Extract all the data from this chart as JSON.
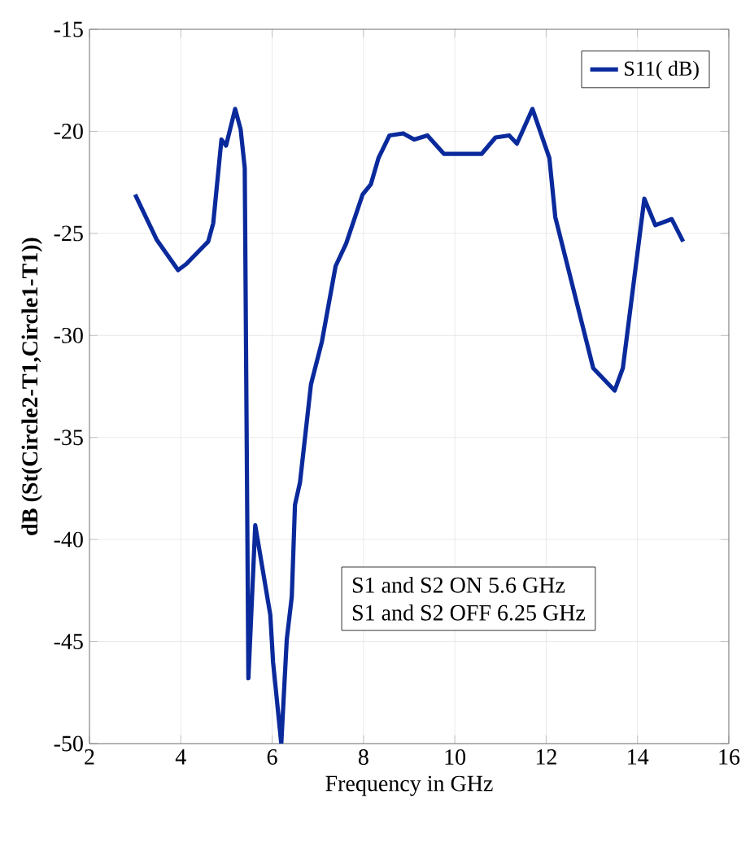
{
  "chart_data": {
    "type": "line",
    "xlabel": "Frequency in GHz",
    "ylabel": "dB (St(Circle2-T1,Circle1-T1))",
    "xlim": [
      2,
      16
    ],
    "ylim": [
      -50,
      -15
    ],
    "xticks": [
      2,
      4,
      6,
      8,
      10,
      12,
      14,
      16
    ],
    "yticks": [
      -50,
      -45,
      -40,
      -35,
      -30,
      -25,
      -20,
      -15
    ],
    "grid": true,
    "legend": "top right",
    "line_style": "solid",
    "annotations": [
      "S1 and S2 ON 5.6 GHz",
      "S1 and S2 OFF 6.25 GHz"
    ],
    "series": [
      {
        "name": "S11( dB)",
        "color": "#0a2a9c",
        "x": [
          3.0,
          3.47,
          3.94,
          4.12,
          4.6,
          4.71,
          4.89,
          4.99,
          5.19,
          5.31,
          5.4,
          5.48,
          5.63,
          5.96,
          6.02,
          6.2,
          6.32,
          6.43,
          6.5,
          6.61,
          6.85,
          7.09,
          7.39,
          7.62,
          7.98,
          8.16,
          8.33,
          8.57,
          8.87,
          9.11,
          9.4,
          9.76,
          10.24,
          10.59,
          10.89,
          11.19,
          11.36,
          11.7,
          12.07,
          12.2,
          13.03,
          13.5,
          13.68,
          14.15,
          14.39,
          14.75,
          15.0
        ],
        "values": [
          -23.1,
          -25.3,
          -26.8,
          -26.5,
          -25.4,
          -24.5,
          -20.4,
          -20.7,
          -18.9,
          -19.9,
          -21.8,
          -46.8,
          -39.3,
          -43.7,
          -46.0,
          -50,
          -44.9,
          -42.8,
          -38.3,
          -37.2,
          -32.4,
          -30.3,
          -26.6,
          -25.5,
          -23.1,
          -22.6,
          -21.3,
          -20.2,
          -20.1,
          -20.4,
          -20.2,
          -21.1,
          -21.1,
          -21.1,
          -20.3,
          -20.2,
          -20.6,
          -18.9,
          -21.3,
          -24.2,
          -31.6,
          -32.7,
          -31.6,
          -23.3,
          -24.6,
          -24.3,
          -25.4
        ]
      }
    ]
  }
}
